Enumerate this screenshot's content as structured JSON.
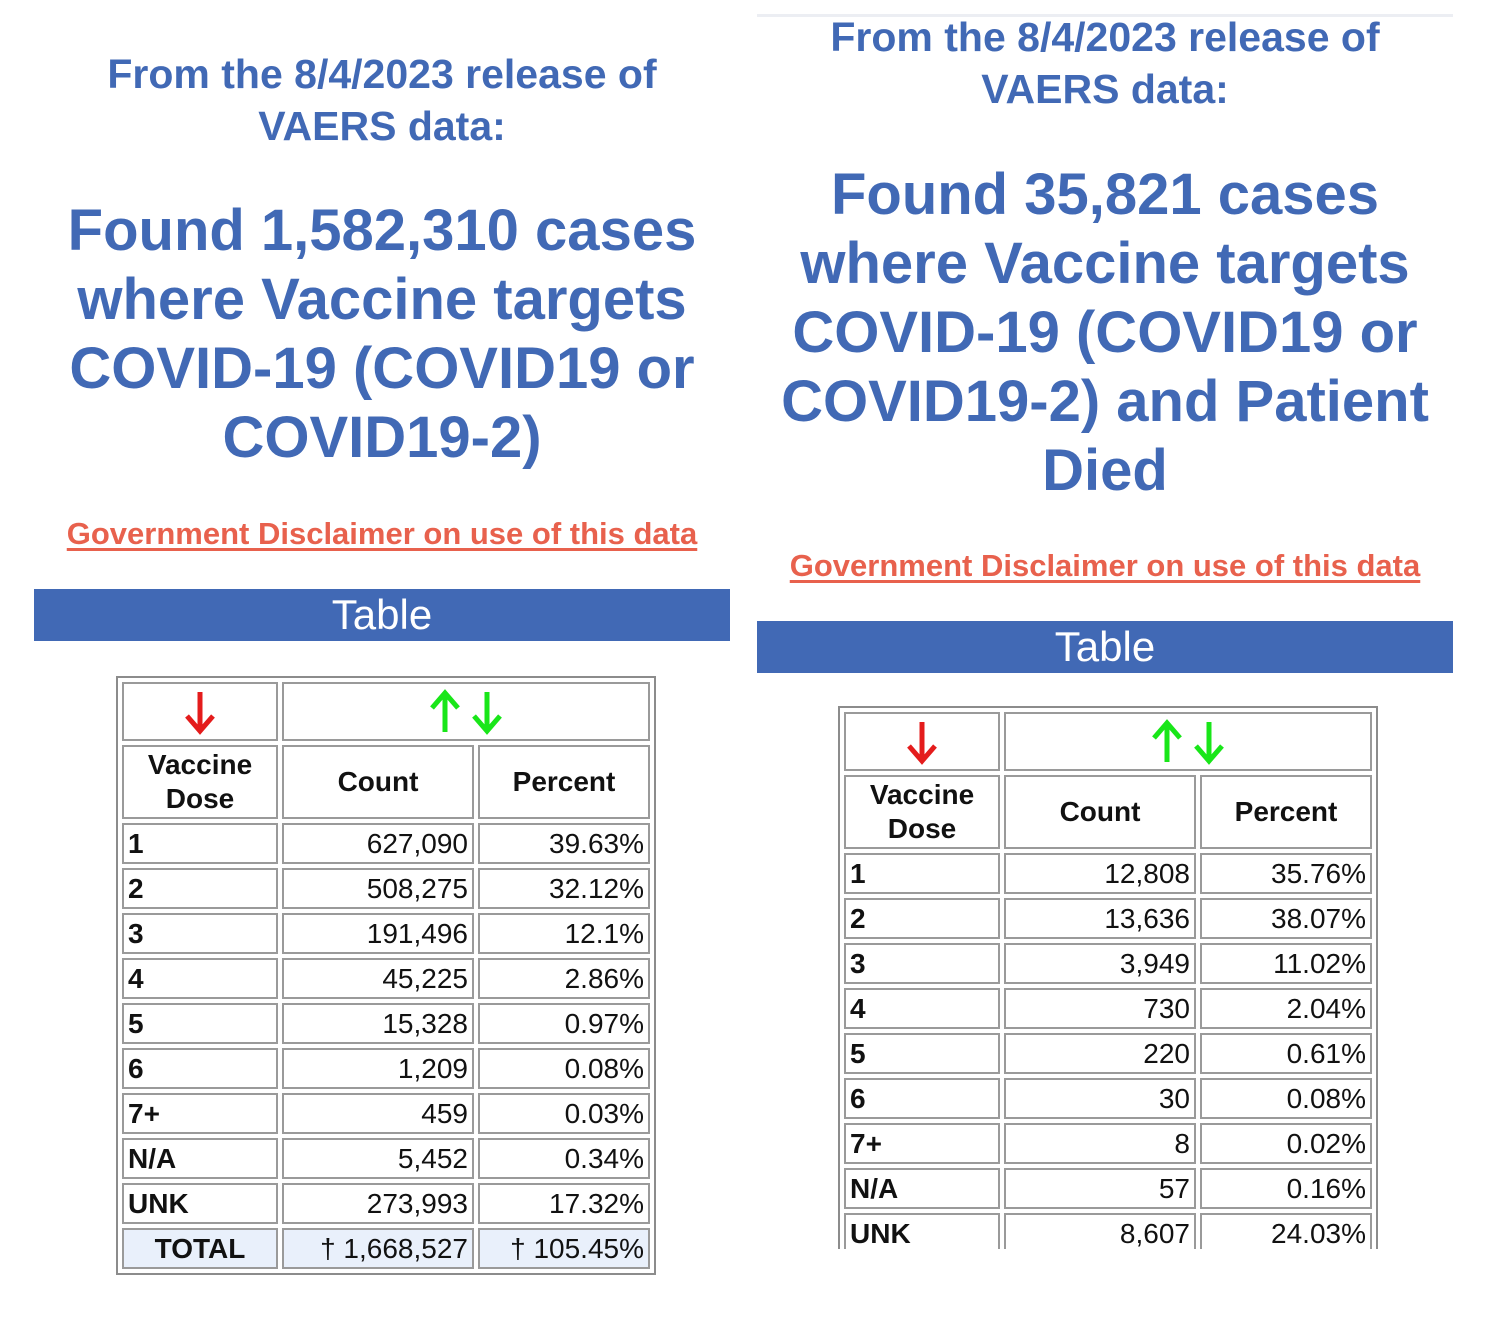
{
  "left": {
    "release": "From the 8/4/2023 release of VAERS data:",
    "release_lines": [
      "From the 8/4/2023 release of",
      "VAERS data:"
    ],
    "headline_lines": [
      "Found 1,582,310 cases",
      "where Vaccine targets",
      "COVID-19 (COVID19 or",
      "COVID19-2)"
    ],
    "disclaimer": "Government Disclaimer on use of this data",
    "table_bar": "Table",
    "headers": {
      "dose": [
        "Vaccine",
        "Dose"
      ],
      "count": "Count",
      "percent": "Percent"
    },
    "rows": [
      {
        "dose": "1",
        "count": "627,090",
        "percent": "39.63%"
      },
      {
        "dose": "2",
        "count": "508,275",
        "percent": "32.12%"
      },
      {
        "dose": "3",
        "count": "191,496",
        "percent": "12.1%"
      },
      {
        "dose": "4",
        "count": "45,225",
        "percent": "2.86%"
      },
      {
        "dose": "5",
        "count": "15,328",
        "percent": "0.97%"
      },
      {
        "dose": "6",
        "count": "1,209",
        "percent": "0.08%"
      },
      {
        "dose": "7+",
        "count": "459",
        "percent": "0.03%"
      },
      {
        "dose": "N/A",
        "count": "5,452",
        "percent": "0.34%"
      },
      {
        "dose": "UNK",
        "count": "273,993",
        "percent": "17.32%"
      }
    ],
    "total": {
      "label": "TOTAL",
      "count": "† 1,668,527",
      "percent": "† 105.45%"
    }
  },
  "right": {
    "release_lines": [
      "From the 8/4/2023 release of",
      "VAERS data:"
    ],
    "headline_lines": [
      "Found 35,821 cases",
      "where Vaccine targets",
      "COVID-19 (COVID19 or",
      "COVID19-2) and Patient",
      "Died"
    ],
    "disclaimer": "Government Disclaimer on use of this data",
    "table_bar": "Table",
    "headers": {
      "dose": [
        "Vaccine",
        "Dose"
      ],
      "count": "Count",
      "percent": "Percent"
    },
    "rows": [
      {
        "dose": "1",
        "count": "12,808",
        "percent": "35.76%"
      },
      {
        "dose": "2",
        "count": "13,636",
        "percent": "38.07%"
      },
      {
        "dose": "3",
        "count": "3,949",
        "percent": "11.02%"
      },
      {
        "dose": "4",
        "count": "730",
        "percent": "2.04%"
      },
      {
        "dose": "5",
        "count": "220",
        "percent": "0.61%"
      },
      {
        "dose": "6",
        "count": "30",
        "percent": "0.08%"
      },
      {
        "dose": "7+",
        "count": "8",
        "percent": "0.02%"
      },
      {
        "dose": "N/A",
        "count": "57",
        "percent": "0.16%"
      },
      {
        "dose": "UNK",
        "count": "8,607",
        "percent": "24.03%"
      }
    ]
  },
  "icons": {
    "sort_dose": "arrow-down-red-icon",
    "sort_up": "arrow-up-green-icon",
    "sort_down": "arrow-down-green-icon"
  },
  "colors": {
    "title": "#4169b5",
    "disclaimer": "#e8614d",
    "bar": "#4169b5",
    "arrow_red": "#e41c1c",
    "arrow_green": "#19e619",
    "total_bg": "#e9f0fb"
  }
}
